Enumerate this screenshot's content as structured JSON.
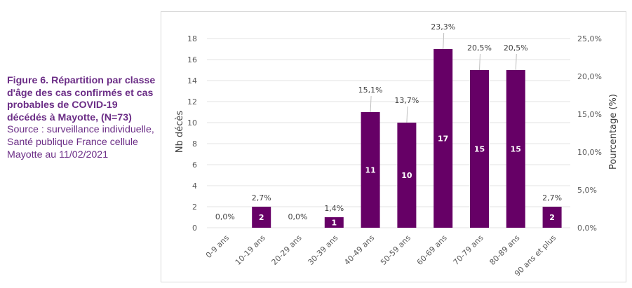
{
  "caption": {
    "title": "Figure 6. Répartition par classe d'âge des cas confirmés et cas probables de COVID-19 décédés à Mayotte, (N=73)",
    "source": "Source : surveillance individuelle, Santé publique France cellule Mayotte au 11/02/2021"
  },
  "chart_data": {
    "type": "bar",
    "title": "",
    "xlabel": "",
    "ylabel": "Nb décès",
    "y2label": "Pourcentage (%)",
    "categories": [
      "0-9 ans",
      "10-19 ans",
      "20-29 ans",
      "30-39 ans",
      "40-49 ans",
      "50-59 ans",
      "60-69 ans",
      "70-79 ans",
      "80-89 ans",
      "90 ans et plus"
    ],
    "series": [
      {
        "name": "Nb décès",
        "axis": "left",
        "values": [
          0,
          2,
          0,
          1,
          11,
          10,
          17,
          15,
          15,
          2
        ],
        "color": "#660066"
      },
      {
        "name": "Pourcentage (%)",
        "axis": "right",
        "values": [
          0.0,
          2.7,
          0.0,
          1.4,
          15.1,
          13.7,
          23.3,
          20.5,
          20.5,
          2.7
        ]
      }
    ],
    "value_labels": [
      "",
      "2",
      "",
      "1",
      "11",
      "10",
      "17",
      "15",
      "15",
      "2"
    ],
    "pct_labels": [
      "0,0%",
      "2,7%",
      "0,0%",
      "1,4%",
      "15,1%",
      "13,7%",
      "23,3%",
      "20,5%",
      "20,5%",
      "2,7%"
    ],
    "ylim": [
      0,
      18
    ],
    "yticks": [
      0,
      2,
      4,
      6,
      8,
      10,
      12,
      14,
      16,
      18
    ],
    "y2lim": [
      0,
      25
    ],
    "y2ticks": [
      "0,0%",
      "5,0%",
      "10,0%",
      "15,0%",
      "20,0%",
      "25,0%"
    ],
    "grid": true,
    "legend": "none"
  }
}
